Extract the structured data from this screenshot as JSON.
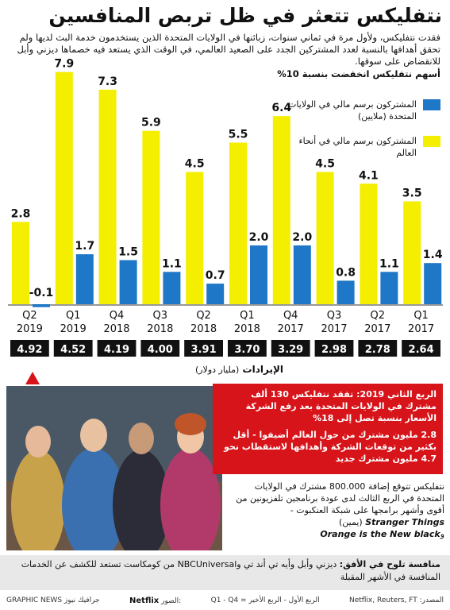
{
  "title": "نتفليكس تتعثر في ظل تربص المنافسين",
  "intro": "فقدت نتفليكس، ولأول مرة في ثماني سنوات، زبائنها في الولايات المتحدة الذين يستخدمون خدمة البث لديها ولم تحقق أهدافها بالنسبة لعدد المشتركين الجدد على الصعيد العالمي، في الوقت الذي يستعد فيه خصماها ديزني وأبل للانقضاض على سوقها.",
  "stock_note": "أسهم نتفليكس انخفضت بنسبة 10%",
  "legend": {
    "us": "المشتركون برسم مالي في الولايات المتحدة (ملايين)",
    "global": "المشتركون برسم مالي في أنحاء العالم"
  },
  "colors": {
    "us": "#1f77c8",
    "global": "#f4ee00",
    "alert": "#d7141a",
    "revenue_bg": "#111111"
  },
  "revenue_title": "الإيرادات",
  "revenue_unit": "(مليار دولار)",
  "chart_data": {
    "type": "bar",
    "categories": [
      "Q2 2019",
      "Q1 2019",
      "Q4 2018",
      "Q3 2018",
      "Q2 2018",
      "Q1 2018",
      "Q4 2017",
      "Q3 2017",
      "Q2 2017",
      "Q1 2017"
    ],
    "quarters": [
      "Q2",
      "Q1",
      "Q4",
      "Q3",
      "Q2",
      "Q1",
      "Q4",
      "Q3",
      "Q2",
      "Q1"
    ],
    "years": [
      "2019",
      "2019",
      "2018",
      "2018",
      "2018",
      "2018",
      "2017",
      "2017",
      "2017",
      "2017"
    ],
    "series": [
      {
        "name": "المشتركون برسم مالي في أنحاء العالم",
        "key": "global",
        "values": [
          2.8,
          7.9,
          7.3,
          5.9,
          4.5,
          5.5,
          6.4,
          4.5,
          4.1,
          3.5
        ],
        "labels": [
          "2.8",
          "7.9",
          "7.3",
          "5.9",
          "4.5",
          "5.5",
          "6.4",
          "4.5",
          "4.1",
          "3.5"
        ]
      },
      {
        "name": "المشتركون برسم مالي في الولايات المتحدة (ملايين)",
        "key": "us",
        "values": [
          -0.1,
          1.7,
          1.5,
          1.1,
          0.7,
          2.0,
          2.0,
          0.8,
          1.1,
          1.4
        ],
        "labels": [
          "-0.1",
          "1.7",
          "1.5",
          "1.1",
          "0.7",
          "2.0",
          "2.0",
          "0.8",
          "1.1",
          "1.4"
        ]
      }
    ],
    "revenue": [
      4.92,
      4.52,
      4.19,
      4.0,
      3.91,
      3.7,
      3.29,
      2.98,
      2.78,
      2.64
    ],
    "revenue_labels": [
      "4.92",
      "4.52",
      "4.19",
      "4.00",
      "3.91",
      "3.70",
      "3.29",
      "2.98",
      "2.78",
      "2.64"
    ],
    "ylim": [
      -0.1,
      8.5
    ],
    "grid": false,
    "legend_position": "right"
  },
  "alert": {
    "p1": "الربع الثاني 2019: تفقد نتفليكس 130 ألف مشترك في الولايات المتحدة بعد رفع الشركة الأسعار بنسبة تصل إلى 18%",
    "p2": "2.8 مليون مشترك من حول العالم أضيفوا - أقل بكثير من توقعات الشركة وأهدافها لاستقطاب نحو 4.7 مليون مشترك جديد"
  },
  "forecast": {
    "text": "نتفليكس تتوقع إضافة 800.000 مشترك في الولايات المتحدة في الربع الثالث لدى عودة برنامجين تلفزيونين من أقوى وأشهر برامجها على شبكة العنكبوت -",
    "show1": "Stranger Things",
    "show1_suffix": "(يمين)",
    "show2_prefix": "و",
    "show2": "Orange is the New black"
  },
  "horizon": {
    "label": "منافسة تلوح في الأفق:",
    "text": "ديزني وأبل وأيه تي أند تي وNBCUniversal من كومكاست تستعد للكشف عن الخدمات المنافسة في الأشهر المقبلة"
  },
  "footer": {
    "agency": "GRAPHIC NEWS جرافيك نيوز",
    "photo_source_label": "الصور:",
    "photo_source": "Netflix",
    "quarter_note": "Q1 - Q4 = الربع الأول - الربع الأخير",
    "source": "المصدر: Netflix, Reuters, FT"
  }
}
